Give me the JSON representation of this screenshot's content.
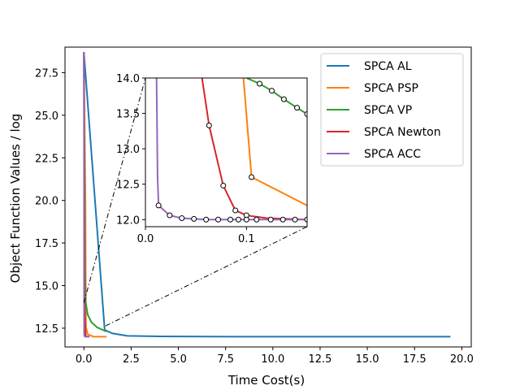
{
  "chart_data": {
    "type": "line",
    "title": "",
    "xlabel": "Time Cost(s)",
    "ylabel": "Object Function Values / log",
    "xlim": [
      -1.0,
      20.5
    ],
    "ylim": [
      11.4,
      29.0
    ],
    "xticks": [
      "0.0",
      "2.5",
      "5.0",
      "7.5",
      "10.0",
      "12.5",
      "15.0",
      "17.5",
      "20.0"
    ],
    "xtick_values": [
      0,
      2.5,
      5,
      7.5,
      10,
      12.5,
      15,
      17.5,
      20
    ],
    "yticks": [
      "12.5",
      "15.0",
      "17.5",
      "20.0",
      "22.5",
      "25.0",
      "27.5"
    ],
    "ytick_values": [
      12.5,
      15,
      17.5,
      20,
      22.5,
      25,
      27.5
    ],
    "legend_position": "upper right",
    "series": [
      {
        "name": "SPCA AL",
        "color": "#1f77b4",
        "x": [
          0.0,
          1.1,
          1.5,
          2.3,
          4.0,
          8.0,
          12.0,
          19.4
        ],
        "y": [
          28.7,
          12.4,
          12.2,
          12.05,
          12.02,
          12.0,
          12.0,
          12.0
        ]
      },
      {
        "name": "SPCA PSP",
        "color": "#ff7f0e",
        "x": [
          0.0,
          0.08,
          0.1,
          0.11,
          0.2,
          0.5,
          1.2
        ],
        "y": [
          28.7,
          20.0,
          14.0,
          12.58,
          12.15,
          12.0,
          12.0
        ]
      },
      {
        "name": "SPCA VP",
        "color": "#2ca02c",
        "x": [
          0.0,
          0.06,
          0.1,
          0.2,
          0.4,
          0.7,
          1.0,
          1.2
        ],
        "y": [
          28.7,
          15.5,
          14.0,
          13.3,
          12.85,
          12.55,
          12.4,
          12.3
        ]
      },
      {
        "name": "SPCA Newton",
        "color": "#d62728",
        "x": [
          0.0,
          0.02,
          0.04,
          0.055,
          0.065,
          0.078,
          0.09,
          0.1,
          0.12,
          0.3
        ],
        "y": [
          28.7,
          20.0,
          14.0,
          13.32,
          12.9,
          12.48,
          12.14,
          12.06,
          12.02,
          12.0
        ],
        "markers": [
          0.062,
          0.077,
          0.09,
          0.1
        ]
      },
      {
        "name": "SPCA ACC",
        "color": "#9467bd",
        "x": [
          0.0,
          0.005,
          0.008,
          0.01,
          0.012,
          0.015,
          0.02,
          0.03,
          0.05,
          0.1,
          0.3
        ],
        "y": [
          28.7,
          25.0,
          20.0,
          14.0,
          12.45,
          12.2,
          12.1,
          12.04,
          12.01,
          12.0,
          12.0
        ]
      }
    ],
    "inset": {
      "xlim": [
        0.0,
        0.16
      ],
      "ylim": [
        11.9,
        14.0
      ],
      "xticks": [
        "0.0",
        "0.1"
      ],
      "xtick_values": [
        0.0,
        0.1
      ],
      "yticks": [
        "12.0",
        "12.5",
        "13.0",
        "13.5",
        "14.0"
      ],
      "ytick_values": [
        12.0,
        12.5,
        13.0,
        13.5,
        14.0
      ],
      "series": [
        {
          "name": "SPCA AL",
          "color": "#1f77b4",
          "x": [],
          "y": []
        },
        {
          "name": "SPCA PSP",
          "color": "#ff7f0e",
          "x": [
            0.097,
            0.105,
            0.16
          ],
          "y": [
            14.0,
            12.6,
            12.2
          ],
          "markers_x": [
            0.105
          ],
          "markers_y": [
            12.6
          ]
        },
        {
          "name": "SPCA VP",
          "color": "#2ca02c",
          "x": [
            0.1,
            0.113,
            0.125,
            0.137,
            0.15,
            0.16
          ],
          "y": [
            14.0,
            13.92,
            13.82,
            13.7,
            13.58,
            13.49
          ],
          "markers_x": [
            0.113,
            0.125,
            0.137,
            0.15,
            0.16
          ],
          "markers_y": [
            13.92,
            13.82,
            13.7,
            13.58,
            13.49
          ]
        },
        {
          "name": "SPCA Newton",
          "color": "#d62728",
          "x": [
            0.056,
            0.063,
            0.077,
            0.089,
            0.1,
            0.12,
            0.16
          ],
          "y": [
            14.0,
            13.33,
            12.48,
            12.13,
            12.06,
            12.02,
            12.0
          ],
          "markers_x": [
            0.063,
            0.077,
            0.089,
            0.1
          ],
          "markers_y": [
            13.33,
            12.48,
            12.13,
            12.06
          ]
        },
        {
          "name": "SPCA ACC",
          "color": "#9467bd",
          "x": [
            0.011,
            0.012,
            0.013,
            0.024,
            0.036,
            0.048,
            0.06,
            0.072,
            0.084,
            0.1,
            0.112,
            0.124,
            0.136,
            0.148,
            0.16
          ],
          "y": [
            14.0,
            12.6,
            12.2,
            12.06,
            12.02,
            12.01,
            12.0,
            12.0,
            12.0,
            12.0,
            12.0,
            12.0,
            12.0,
            12.0,
            12.0
          ],
          "markers_x": [
            0.013,
            0.024,
            0.036,
            0.048,
            0.06,
            0.072,
            0.084,
            0.092,
            0.1,
            0.11,
            0.124,
            0.136,
            0.148,
            0.16
          ],
          "markers_y": [
            12.2,
            12.06,
            12.02,
            12.01,
            12.0,
            12.0,
            12.0,
            12.0,
            12.0,
            12.0,
            12.0,
            12.0,
            12.0,
            12.0
          ]
        }
      ]
    }
  }
}
